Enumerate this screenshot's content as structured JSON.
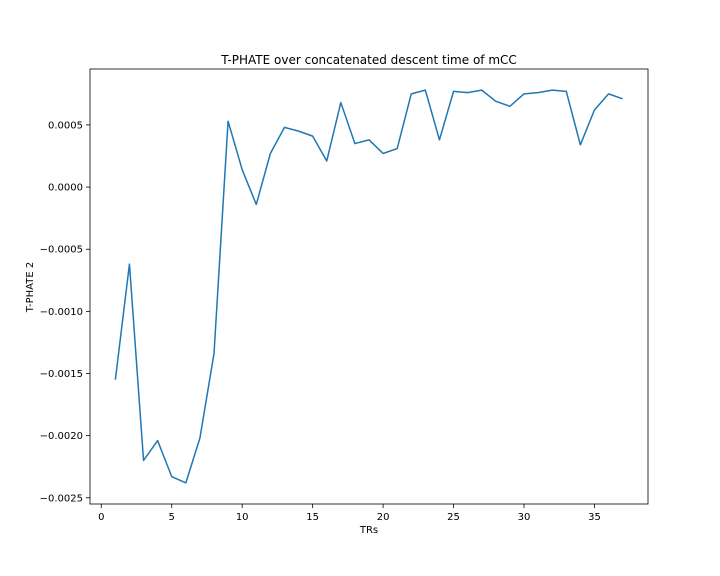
{
  "chart_data": {
    "type": "line",
    "title": "T-PHATE over concatenated descent time of mCC",
    "xlabel": "TRs",
    "ylabel": "T-PHATE 2",
    "xlim": [
      -0.8,
      38.8
    ],
    "ylim": [
      -0.00255,
      0.00095
    ],
    "xticks": [
      0,
      5,
      10,
      15,
      20,
      25,
      30,
      35
    ],
    "xtick_labels": [
      "0",
      "5",
      "10",
      "15",
      "20",
      "25",
      "30",
      "35"
    ],
    "yticks": [
      -0.0025,
      -0.002,
      -0.0015,
      -0.001,
      -0.0005,
      0.0,
      0.0005
    ],
    "ytick_labels": [
      "−0.0025",
      "−0.0020",
      "−0.0015",
      "−0.0010",
      "−0.0005",
      "0.0000",
      "0.0005"
    ],
    "grid": false,
    "series": [
      {
        "color": "#1f77b4",
        "x": [
          1,
          2,
          3,
          4,
          5,
          6,
          7,
          8,
          9,
          10,
          11,
          12,
          13,
          14,
          15,
          16,
          17,
          18,
          19,
          20,
          21,
          22,
          23,
          24,
          25,
          26,
          27,
          28,
          29,
          30,
          31,
          32,
          33,
          34,
          35,
          36,
          37
        ],
        "y": [
          -0.00155,
          -0.00062,
          -0.0022,
          -0.00204,
          -0.00233,
          -0.00238,
          -0.00202,
          -0.00134,
          0.00053,
          0.00014,
          -0.00014,
          0.00027,
          0.00048,
          0.00045,
          0.00041,
          0.00021,
          0.00068,
          0.00035,
          0.00038,
          0.00027,
          0.00031,
          0.00075,
          0.00078,
          0.00038,
          0.00077,
          0.00076,
          0.00078,
          0.00069,
          0.00065,
          0.00075,
          0.00076,
          0.00078,
          0.00077,
          0.00034,
          0.00062,
          0.00075,
          0.00071
        ]
      }
    ]
  }
}
